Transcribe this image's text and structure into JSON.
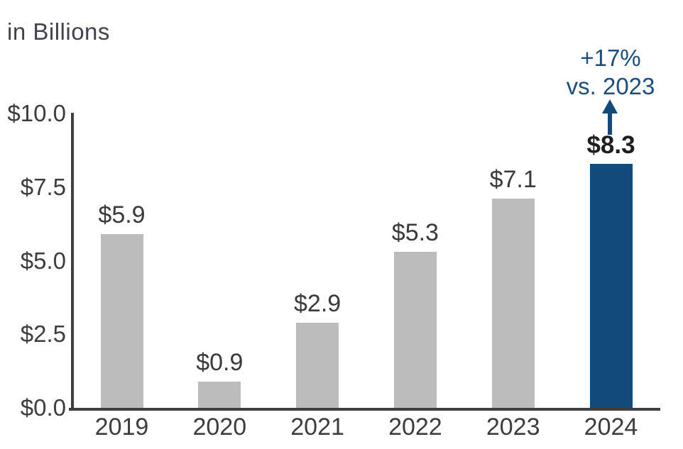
{
  "title": "in Billions",
  "annotation": {
    "line1": "+17%",
    "line2": "vs. 2023"
  },
  "colors": {
    "bar_default": "#bcbcbc",
    "bar_highlight": "#134a7c",
    "axis": "#3f3f3f",
    "label_text": "#3d3d3d",
    "annotation_blue": "#1b4d7e",
    "highlight_label_text": "#1f1f1f"
  },
  "chart_data": {
    "type": "bar",
    "title": "in Billions",
    "categories": [
      "2019",
      "2020",
      "2021",
      "2022",
      "2023",
      "2024"
    ],
    "values": [
      5.9,
      0.9,
      2.9,
      5.3,
      7.1,
      8.3
    ],
    "bar_labels": [
      "$5.9",
      "$0.9",
      "$2.9",
      "$5.3",
      "$7.1",
      "$8.3"
    ],
    "highlight_index": 5,
    "xlabel": "",
    "ylabel": "",
    "ylim": [
      0,
      10
    ],
    "y_ticks": [
      {
        "label": "$10.0",
        "value": 10
      },
      {
        "label": "$7.5",
        "value": 7.5
      },
      {
        "label": "$5.0",
        "value": 5
      },
      {
        "label": "$2.5",
        "value": 2.5
      },
      {
        "label": "$0.0",
        "value": 0
      }
    ],
    "grid": false,
    "legend": false,
    "annotation": {
      "lines": [
        "+17%",
        "vs. 2023"
      ],
      "target_category": "2024",
      "arrow_direction": "up"
    }
  }
}
